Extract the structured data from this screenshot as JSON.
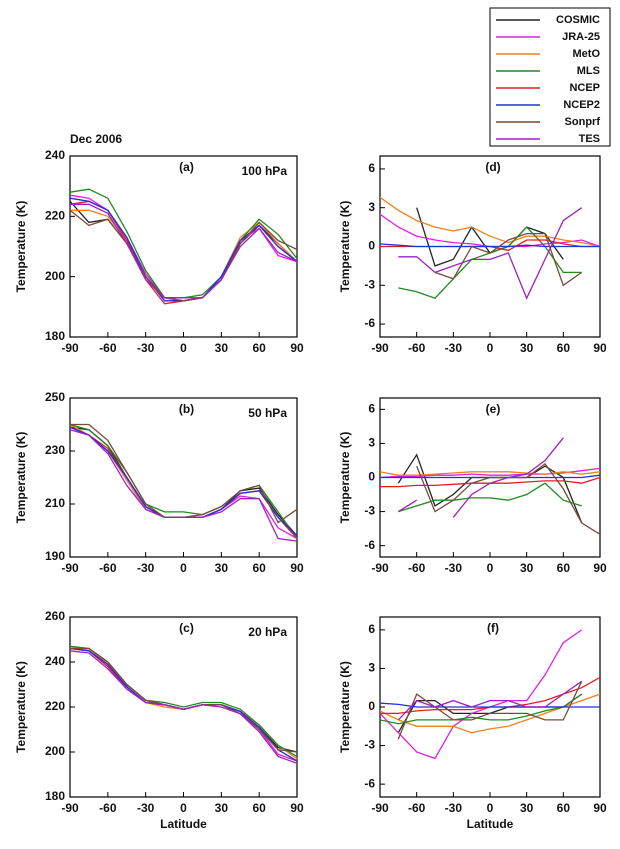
{
  "title": "Dec 2006",
  "legend": [
    {
      "name": "COSMIC",
      "color": "#222222"
    },
    {
      "name": "JRA-25",
      "color": "#e020e0"
    },
    {
      "name": "MetO",
      "color": "#f08020"
    },
    {
      "name": "MLS",
      "color": "#208a20"
    },
    {
      "name": "NCEP",
      "color": "#e02020"
    },
    {
      "name": "NCEP2",
      "color": "#2030e0"
    },
    {
      "name": "Sonprf",
      "color": "#7a4a3a"
    },
    {
      "name": "TES",
      "color": "#a020c0"
    }
  ],
  "chart_data": [
    {
      "type": "line",
      "label": "(a)",
      "annotation": "100 hPa",
      "ylabel": "Temperature (K)",
      "x": [
        -90,
        -75,
        -60,
        -45,
        -30,
        -15,
        0,
        15,
        30,
        45,
        60,
        75,
        90
      ],
      "xlim": [
        -90,
        90
      ],
      "xticks": [
        -90,
        -60,
        -30,
        0,
        30,
        60,
        90
      ],
      "ylim": [
        180,
        240
      ],
      "yticks": [
        180,
        200,
        220,
        240
      ],
      "series": [
        {
          "values": [
            225,
            218,
            219,
            211,
            200,
            193,
            192,
            193,
            199,
            211,
            217,
            211,
            205
          ]
        },
        {
          "values": [
            227,
            226,
            222,
            213,
            201,
            193,
            192,
            193,
            199,
            212,
            216,
            207,
            205
          ]
        },
        {
          "values": [
            222,
            222,
            220,
            212,
            200,
            192,
            192,
            193,
            200,
            213,
            218,
            211,
            205
          ]
        },
        {
          "values": [
            228,
            229,
            226,
            215,
            202,
            193,
            193,
            194,
            200,
            212,
            219,
            214,
            206
          ]
        },
        {
          "values": [
            224,
            225,
            222,
            212,
            199,
            191,
            192,
            193,
            199,
            212,
            217,
            210,
            205
          ]
        },
        {
          "values": [
            226,
            225,
            222,
            213,
            200,
            192,
            192,
            193,
            200,
            212,
            217,
            210,
            205
          ]
        },
        {
          "values": [
            222,
            217,
            219,
            211,
            200,
            193,
            192,
            193,
            199,
            211,
            218,
            212,
            209
          ]
        },
        {
          "values": [
            224,
            224,
            221,
            211,
            199,
            193,
            193,
            193,
            199,
            210,
            216,
            208,
            205
          ]
        }
      ]
    },
    {
      "type": "line",
      "label": "(d)",
      "ylabel": "Temperature (K)",
      "x": [
        -90,
        -75,
        -60,
        -45,
        -30,
        -15,
        0,
        15,
        30,
        45,
        60,
        75,
        90
      ],
      "xlim": [
        -90,
        90
      ],
      "xticks": [
        -90,
        -60,
        -30,
        0,
        30,
        60,
        90
      ],
      "ylim": [
        -7,
        7
      ],
      "yticks": [
        -6,
        -3,
        0,
        3,
        6
      ],
      "series": [
        {
          "values": [
            null,
            null,
            3,
            -1.5,
            -1,
            1.5,
            -0.5,
            0,
            1.5,
            1,
            -1,
            null,
            null
          ]
        },
        {
          "values": [
            2.5,
            1.5,
            0.8,
            0.5,
            0.3,
            0.2,
            0,
            0,
            0,
            0.2,
            0.3,
            0.5,
            0
          ]
        },
        {
          "values": [
            3.8,
            2.8,
            2,
            1.5,
            1.2,
            1.5,
            0.8,
            0.3,
            0.8,
            0.8,
            0.5,
            0.3,
            0
          ]
        },
        {
          "values": [
            null,
            -3.2,
            -3.5,
            -4,
            -2.5,
            -1,
            -0.5,
            0,
            1.5,
            0,
            -2,
            -2,
            null
          ]
        },
        {
          "values": [
            0,
            0,
            0,
            0,
            0,
            0,
            0,
            -0.3,
            0.5,
            0.5,
            0.2,
            0,
            0
          ]
        },
        {
          "values": [
            0.2,
            0.1,
            0,
            0,
            0,
            0,
            0,
            0,
            0.1,
            0,
            0,
            0,
            0
          ]
        },
        {
          "values": [
            null,
            null,
            null,
            -2,
            -2.5,
            0,
            -0.5,
            0.5,
            1,
            1,
            -3,
            -2,
            null
          ]
        },
        {
          "values": [
            null,
            -0.8,
            -0.8,
            -2,
            -1.5,
            -1,
            -1,
            -0.5,
            -4,
            -1,
            2,
            3,
            null
          ]
        }
      ]
    },
    {
      "type": "line",
      "label": "(b)",
      "annotation": "50 hPa",
      "ylabel": "Temperature (K)",
      "x": [
        -90,
        -75,
        -60,
        -45,
        -30,
        -15,
        0,
        15,
        30,
        45,
        60,
        75,
        90
      ],
      "xlim": [
        -90,
        90
      ],
      "xticks": [
        -90,
        -60,
        -30,
        0,
        30,
        60,
        90
      ],
      "ylim": [
        190,
        250
      ],
      "yticks": [
        190,
        210,
        230,
        250
      ],
      "series": [
        {
          "values": [
            239,
            238,
            232,
            220,
            209,
            205,
            205,
            205,
            208,
            215,
            216,
            206,
            198
          ]
        },
        {
          "values": [
            239,
            236,
            230,
            219,
            208,
            205,
            205,
            205,
            208,
            213,
            212,
            201,
            197
          ]
        },
        {
          "values": [
            240,
            236,
            230,
            219,
            208,
            205,
            205,
            205,
            208,
            214,
            215,
            205,
            197
          ]
        },
        {
          "values": [
            240,
            238,
            232,
            222,
            210,
            207,
            207,
            206,
            209,
            215,
            217,
            207,
            197
          ]
        },
        {
          "values": [
            239,
            236,
            231,
            220,
            209,
            205,
            205,
            205,
            208,
            214,
            215,
            205,
            197
          ]
        },
        {
          "values": [
            239,
            236,
            230,
            220,
            209,
            205,
            205,
            205,
            208,
            214,
            215,
            205,
            198
          ]
        },
        {
          "values": [
            240,
            240,
            234,
            222,
            210,
            205,
            205,
            206,
            209,
            215,
            217,
            203,
            208
          ]
        },
        {
          "values": [
            238,
            236,
            229,
            217,
            208,
            205,
            205,
            205,
            207,
            212,
            212,
            197,
            196
          ]
        }
      ]
    },
    {
      "type": "line",
      "label": "(e)",
      "ylabel": "Temperature (K)",
      "x": [
        -90,
        -75,
        -60,
        -45,
        -30,
        -15,
        0,
        15,
        30,
        45,
        60,
        75,
        90
      ],
      "xlim": [
        -90,
        90
      ],
      "xticks": [
        -90,
        -60,
        -30,
        0,
        30,
        60,
        90
      ],
      "ylim": [
        -7,
        7
      ],
      "yticks": [
        -6,
        -3,
        0,
        3,
        6
      ],
      "series": [
        {
          "values": [
            null,
            -0.5,
            2,
            -2.5,
            -1.5,
            0,
            0,
            0,
            0,
            1,
            0,
            -4,
            null
          ]
        },
        {
          "values": [
            0,
            0.1,
            0.1,
            0.2,
            0.2,
            0.3,
            0.2,
            0.2,
            0.3,
            0.3,
            0.4,
            0.6,
            0.8
          ]
        },
        {
          "values": [
            0.5,
            0.2,
            0.2,
            0.3,
            0.4,
            0.5,
            0.5,
            0.5,
            0.4,
            0.3,
            0.5,
            0.3,
            0.5
          ]
        },
        {
          "values": [
            null,
            -3,
            -2.5,
            -2,
            -2,
            -1.8,
            -1.8,
            -2,
            -1.5,
            -0.5,
            -2,
            -2.5,
            null
          ]
        },
        {
          "values": [
            -0.8,
            -0.8,
            -0.7,
            -0.7,
            -0.6,
            -0.5,
            -0.5,
            -0.5,
            -0.4,
            -0.3,
            -0.3,
            -0.5,
            0
          ]
        },
        {
          "values": [
            0,
            0,
            0,
            0,
            0,
            0,
            0,
            0,
            0,
            0,
            0,
            0,
            0.2
          ]
        },
        {
          "values": [
            null,
            null,
            1,
            -3,
            -2,
            -0.5,
            0,
            0,
            0,
            1.2,
            -1,
            -4,
            -5
          ]
        },
        {
          "values": [
            null,
            -3,
            -2,
            null,
            -3.5,
            -1.5,
            -0.5,
            0,
            0.3,
            1.5,
            3.5,
            null,
            null
          ]
        }
      ]
    },
    {
      "type": "line",
      "label": "(c)",
      "annotation": "20 hPa",
      "ylabel": "Temperature (K)",
      "xlabel": "Latitude",
      "x": [
        -90,
        -75,
        -60,
        -45,
        -30,
        -15,
        0,
        15,
        30,
        45,
        60,
        75,
        90
      ],
      "xlim": [
        -90,
        90
      ],
      "xticks": [
        -90,
        -60,
        -30,
        0,
        30,
        60,
        90
      ],
      "ylim": [
        180,
        260
      ],
      "yticks": [
        180,
        200,
        220,
        240,
        260
      ],
      "series": [
        {
          "values": [
            246,
            246,
            240,
            230,
            223,
            221,
            219,
            221,
            221,
            217,
            211,
            202,
            200
          ]
        },
        {
          "values": [
            246,
            245,
            238,
            228,
            222,
            221,
            219,
            221,
            221,
            218,
            210,
            199,
            196
          ]
        },
        {
          "values": [
            247,
            246,
            239,
            229,
            222,
            220,
            219,
            221,
            221,
            218,
            212,
            203,
            197
          ]
        },
        {
          "values": [
            247,
            246,
            240,
            230,
            223,
            222,
            220,
            222,
            222,
            219,
            212,
            203,
            198
          ]
        },
        {
          "values": [
            246,
            245,
            238,
            229,
            222,
            221,
            219,
            221,
            221,
            218,
            211,
            201,
            196
          ]
        },
        {
          "values": [
            246,
            245,
            239,
            229,
            222,
            221,
            219,
            221,
            221,
            218,
            211,
            201,
            196
          ]
        },
        {
          "values": [
            246,
            246,
            240,
            230,
            223,
            221,
            219,
            221,
            221,
            217,
            210,
            201,
            200
          ]
        },
        {
          "values": [
            245,
            244,
            237,
            228,
            222,
            221,
            219,
            221,
            220,
            217,
            209,
            198,
            195
          ]
        }
      ]
    },
    {
      "type": "line",
      "label": "(f)",
      "ylabel": "Temperature (K)",
      "xlabel": "Latitude",
      "x": [
        -90,
        -75,
        -60,
        -45,
        -30,
        -15,
        0,
        15,
        30,
        45,
        60,
        75,
        90
      ],
      "xlim": [
        -90,
        90
      ],
      "xticks": [
        -90,
        -60,
        -30,
        0,
        30,
        60,
        90
      ],
      "ylim": [
        -7,
        7
      ],
      "yticks": [
        -6,
        -3,
        0,
        3,
        6
      ],
      "series": [
        {
          "values": [
            null,
            -2,
            0.5,
            0.5,
            -0.5,
            -0.5,
            -0.5,
            0,
            0,
            0,
            0,
            1,
            null
          ]
        },
        {
          "values": [
            -0.5,
            -2,
            -3.5,
            -4,
            -1.5,
            -0.5,
            0,
            0.5,
            0.5,
            2.5,
            5,
            6,
            null
          ]
        },
        {
          "values": [
            -0.3,
            -1,
            -1.5,
            -1.5,
            -1.5,
            -2,
            -1.7,
            -1.5,
            -1,
            -0.5,
            0,
            0.5,
            1
          ]
        },
        {
          "values": [
            -1,
            -1.3,
            -1,
            -1,
            -1,
            -0.8,
            -1,
            -1,
            -0.7,
            -0.3,
            0,
            1,
            null
          ]
        },
        {
          "values": [
            -0.5,
            -0.5,
            -0.3,
            -0.2,
            -0.2,
            -0.2,
            0,
            0,
            0.2,
            0.5,
            1,
            1.5,
            2.3
          ]
        },
        {
          "values": [
            0.3,
            0.2,
            0,
            0,
            0,
            0,
            0,
            0,
            0,
            0,
            0,
            0,
            0
          ]
        },
        {
          "values": [
            null,
            -2.5,
            1,
            0,
            -1,
            -1,
            -0.5,
            -0.5,
            -0.5,
            -1,
            -1,
            2,
            null
          ]
        },
        {
          "values": [
            null,
            -1,
            0.5,
            0,
            0.5,
            0,
            0.5,
            0.5,
            0,
            0,
            1,
            2,
            null
          ]
        }
      ]
    }
  ]
}
